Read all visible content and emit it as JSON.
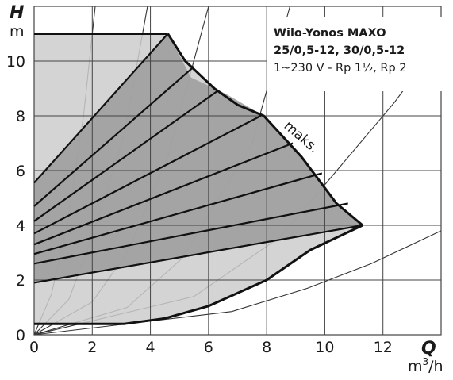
{
  "chart_data": {
    "type": "line",
    "title_lines": [
      "Wilo-Yonos MAXO",
      "25/0,5-12, 30/0,5-12",
      "1~230 V - Rp 1½, Rp 2"
    ],
    "y_axis": {
      "label": "H",
      "unit": "m",
      "ticks": [
        0,
        2,
        4,
        6,
        8,
        10
      ],
      "range": [
        0,
        12
      ]
    },
    "x_axis": {
      "label": "Q",
      "unit_base": "m",
      "unit_sup": "3",
      "unit_tail": "/h",
      "ticks": [
        0,
        2,
        4,
        6,
        8,
        10,
        12
      ],
      "range": [
        0,
        14
      ]
    },
    "max_label": "maks.",
    "grid": true,
    "outer_envelope": [
      [
        0,
        11
      ],
      [
        4.6,
        11
      ],
      [
        5.2,
        10
      ],
      [
        6.2,
        9
      ],
      [
        7.0,
        8.4
      ],
      [
        7.9,
        8
      ],
      [
        9.2,
        6.5
      ],
      [
        10.4,
        4.8
      ],
      [
        11.3,
        4.0
      ],
      [
        9.5,
        3.1
      ],
      [
        8.0,
        2.0
      ],
      [
        6.0,
        1.05
      ],
      [
        4.5,
        0.6
      ],
      [
        3.1,
        0.4
      ],
      [
        0,
        0.4
      ]
    ],
    "control_region": [
      [
        0,
        5.5
      ],
      [
        4.6,
        11
      ],
      [
        5.4,
        9.4
      ],
      [
        6.6,
        8.8
      ],
      [
        7.9,
        8
      ],
      [
        9.2,
        6.5
      ],
      [
        10.4,
        4.8
      ],
      [
        11.3,
        4.0
      ],
      [
        0,
        1.9
      ]
    ],
    "max_curve": [
      [
        4.6,
        11
      ],
      [
        5.2,
        10
      ],
      [
        6.2,
        9
      ],
      [
        7.0,
        8.4
      ],
      [
        7.9,
        8
      ],
      [
        9.2,
        6.5
      ],
      [
        10.4,
        4.8
      ],
      [
        11.3,
        4.0
      ]
    ],
    "min_curve": [
      [
        0,
        0.4
      ],
      [
        3.1,
        0.4
      ],
      [
        4.5,
        0.6
      ],
      [
        6.0,
        1.05
      ],
      [
        8.0,
        2.0
      ],
      [
        9.5,
        3.1
      ],
      [
        11.3,
        4.0
      ]
    ],
    "setpoint_lines": [
      [
        [
          0,
          5.55
        ],
        [
          4.6,
          11
        ]
      ],
      [
        [
          0,
          4.7
        ],
        [
          5.5,
          9.8
        ]
      ],
      [
        [
          0,
          4.15
        ],
        [
          6.3,
          8.9
        ]
      ],
      [
        [
          0,
          3.7
        ],
        [
          7.8,
          8.0
        ]
      ],
      [
        [
          0,
          3.3
        ],
        [
          8.9,
          7.0
        ]
      ],
      [
        [
          0,
          2.95
        ],
        [
          9.9,
          5.9
        ]
      ],
      [
        [
          0,
          2.6
        ],
        [
          10.8,
          4.8
        ]
      ],
      [
        [
          0,
          1.9
        ],
        [
          11.3,
          4.0
        ]
      ]
    ],
    "system_curves": [
      [
        [
          0,
          0
        ],
        [
          0.6,
          1.5
        ],
        [
          1.15,
          4.1
        ],
        [
          1.7,
          8.0
        ],
        [
          2.1,
          12
        ]
      ],
      [
        [
          0,
          0
        ],
        [
          1.2,
          1.3
        ],
        [
          2.0,
          3.6
        ],
        [
          3.1,
          7.3
        ],
        [
          3.9,
          12
        ]
      ],
      [
        [
          0,
          0
        ],
        [
          2.0,
          1.2
        ],
        [
          3.2,
          3.0
        ],
        [
          4.6,
          6.5
        ],
        [
          6.0,
          12
        ]
      ],
      [
        [
          0,
          0
        ],
        [
          3.2,
          1.0
        ],
        [
          5.1,
          2.8
        ],
        [
          7.5,
          7.0
        ],
        [
          8.8,
          12
        ]
      ],
      [
        [
          0,
          0
        ],
        [
          5.5,
          1.4
        ],
        [
          8.5,
          3.6
        ],
        [
          12.4,
          8.5
        ],
        [
          14,
          10.8
        ]
      ],
      [
        [
          0,
          0
        ],
        [
          6.8,
          0.85
        ],
        [
          9.4,
          1.7
        ],
        [
          11.6,
          2.6
        ],
        [
          14,
          3.8
        ]
      ]
    ],
    "colors": {
      "outer_fill": "#cdcdcd",
      "control_fill": "#9f9f9f",
      "curve_line": "#111111",
      "system_curve": "#333333",
      "grid": "#444444",
      "title_box": "#ffffff"
    }
  }
}
